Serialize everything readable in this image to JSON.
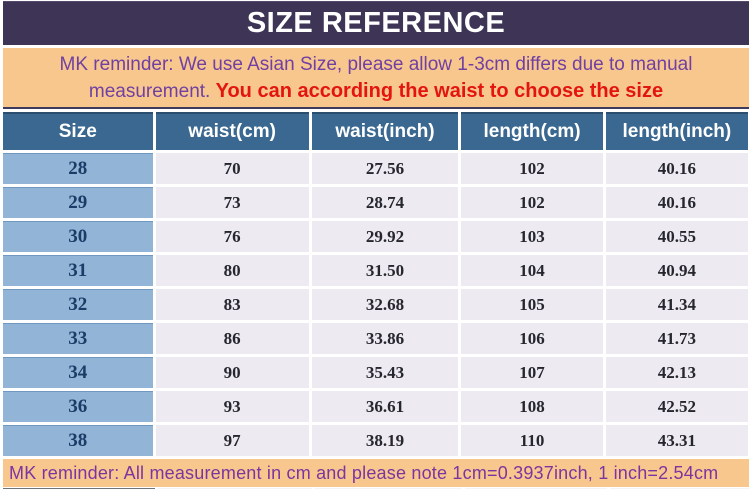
{
  "title_bar": {
    "title": "SIZE REFERENCE"
  },
  "top_note": {
    "purple_line1": "MK reminder: We use Asian Size, please allow 1-3cm differs due to manual",
    "purple_line2": "measurement. ",
    "red_text": "You can according the waist  to choose the size"
  },
  "size_table": {
    "headers": [
      "Size",
      "waist(cm)",
      "waist(inch)",
      "length(cm)",
      "length(inch)"
    ],
    "rows": [
      [
        "28",
        "70",
        "27.56",
        "102",
        "40.16"
      ],
      [
        "29",
        "73",
        "28.74",
        "102",
        "40.16"
      ],
      [
        "30",
        "76",
        "29.92",
        "103",
        "40.55"
      ],
      [
        "31",
        "80",
        "31.50",
        "104",
        "40.94"
      ],
      [
        "32",
        "83",
        "32.68",
        "105",
        "41.34"
      ],
      [
        "33",
        "86",
        "33.86",
        "106",
        "41.73"
      ],
      [
        "34",
        "90",
        "35.43",
        "107",
        "42.13"
      ],
      [
        "36",
        "93",
        "36.61",
        "108",
        "42.52"
      ],
      [
        "38",
        "97",
        "38.19",
        "110",
        "43.31"
      ]
    ]
  },
  "bottom_note": {
    "text": "MK reminder: All measurement in cm and please note 1cm=0.3937inch, 1 inch=2.54cm"
  },
  "colors": {
    "title_bar_bg": "#3d3456",
    "title_text": "#ffffff",
    "note_bg": "#f8c78e",
    "note_purple_text": "#7040a2",
    "note_red_text": "#e3150f",
    "header_bg": "#3a6890",
    "header_text": "#ffffff",
    "size_column_bg": "#92b4d6",
    "size_column_text": "#1c3c68",
    "data_cell_bg": "#edeaf1",
    "data_cell_text": "#26262e",
    "grid_lines": "#ffffff"
  }
}
